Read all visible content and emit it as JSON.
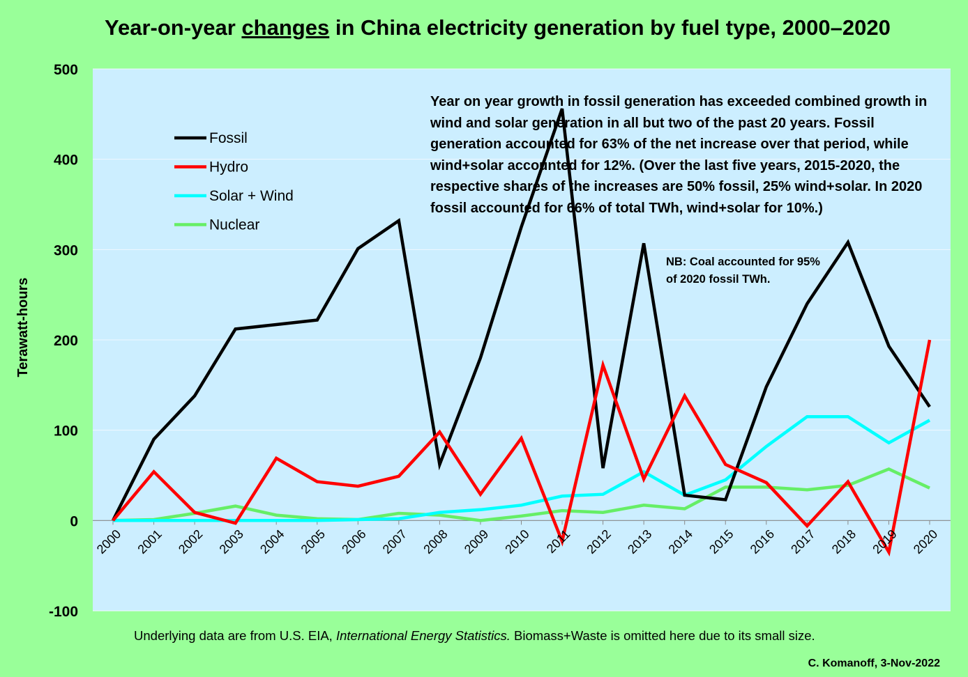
{
  "title": {
    "pre": "Year-on-year ",
    "underlined": "changes",
    "post": " in China electricity generation by fuel type, 2000–2020"
  },
  "footnote": {
    "pre": "Underlying data are from U.S. EIA, ",
    "italic": "International Energy Statistics.",
    "post": " Biomass+Waste is omitted here due to its small size."
  },
  "credit": "C. Komanoff, 3-Nov-2022",
  "annotation_main": "Year on year growth in fossil generation has exceeded combined growth in wind and solar generation in all but two of the past 20 years. Fossil generation accounted for 63% of the net increase over that period, while wind+solar accounted for 12%. (Over the last five years, 2015-2020, the respective shares of the increases are 50% fossil, 25% wind+solar. In 2020 fossil accounted for 66% of total TWh, wind+solar for 10%.)",
  "annotation_nb": "NB: Coal accounted for 95% of 2020 fossil TWh.",
  "colors": {
    "background": "#99ff99",
    "plot_area": "#cceeff",
    "fossil": "#000000",
    "hydro": "#ff0000",
    "solar_wind": "#00ffff",
    "nuclear": "#66ee66"
  },
  "chart_data": {
    "type": "line",
    "title": "Year-on-year changes in China electricity generation by fuel type, 2000–2020",
    "xlabel": "",
    "ylabel": "Terawatt-hours",
    "ylim": [
      -100,
      500
    ],
    "yticks": [
      -100,
      0,
      100,
      200,
      300,
      400,
      500
    ],
    "grid": true,
    "legend_position": "top-left",
    "x": [
      "2000",
      "2001",
      "2002",
      "2003",
      "2004",
      "2005",
      "2006",
      "2007",
      "2008",
      "2009",
      "2010",
      "2011",
      "2012",
      "2013",
      "2014",
      "2015",
      "2016",
      "2017",
      "2018",
      "2019",
      "2020"
    ],
    "series": [
      {
        "name": "Fossil",
        "color": "#000000",
        "values": [
          0,
          90,
          138,
          212,
          217,
          222,
          301,
          332,
          62,
          180,
          325,
          456,
          58,
          307,
          28,
          23,
          148,
          240,
          308,
          193,
          126
        ]
      },
      {
        "name": "Hydro",
        "color": "#ff0000",
        "values": [
          0,
          54,
          9,
          -3,
          69,
          43,
          38,
          49,
          98,
          29,
          91,
          -23,
          172,
          46,
          138,
          62,
          42,
          -6,
          43,
          -35,
          200
        ]
      },
      {
        "name": "Solar + Wind",
        "color": "#00ffff",
        "values": [
          0,
          0,
          0,
          0,
          0,
          0,
          1,
          2,
          9,
          12,
          17,
          27,
          29,
          54,
          28,
          45,
          82,
          115,
          115,
          86,
          111
        ]
      },
      {
        "name": "Nuclear",
        "color": "#66ee66",
        "values": [
          0,
          1,
          8,
          16,
          6,
          2,
          1,
          8,
          6,
          0,
          5,
          11,
          9,
          17,
          13,
          37,
          37,
          34,
          39,
          57,
          36
        ]
      }
    ]
  }
}
